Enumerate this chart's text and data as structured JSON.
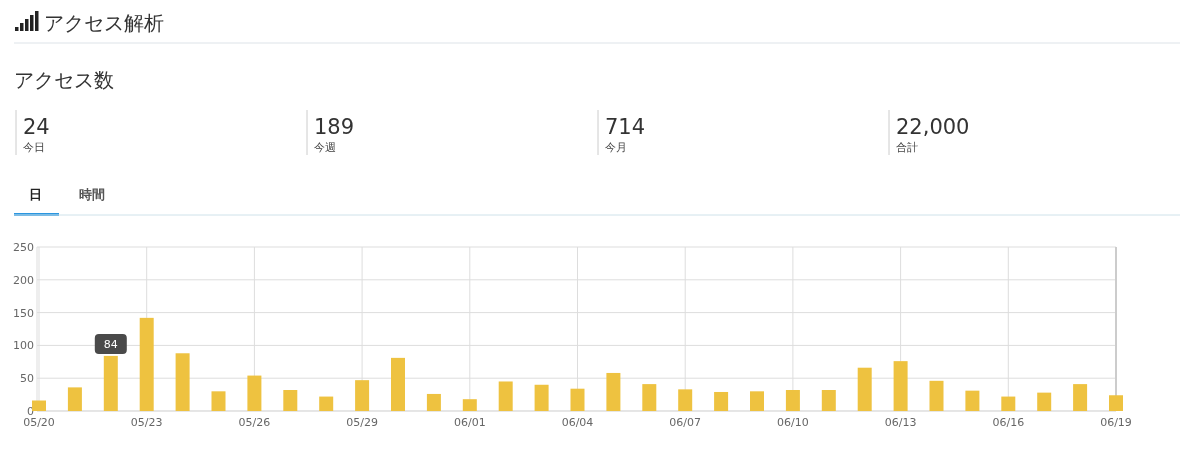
{
  "chart_data": [
    {
      "type": "other",
      "title": "アクセス解析",
      "subtitle": "アクセス数",
      "categories": [
        "今日",
        "今週",
        "今月",
        "合計"
      ],
      "value_labels": [
        "24",
        "189",
        "714",
        "22,000"
      ]
    },
    {
      "type": "bar",
      "annotations": [
        "日",
        "時間"
      ],
      "categories": [
        "05/20",
        null,
        null,
        "05/23",
        null,
        null,
        "05/26",
        null,
        null,
        "05/29",
        null,
        null,
        "06/01",
        null,
        null,
        "06/04",
        null,
        null,
        "06/07",
        null,
        null,
        "06/10",
        null,
        null,
        "06/13",
        null,
        null,
        "06/16",
        null,
        null,
        "06/19"
      ],
      "values": [
        16,
        36,
        84,
        142,
        88,
        30,
        54,
        32,
        22,
        47,
        81,
        26,
        18,
        45,
        40,
        34,
        58,
        41,
        33,
        29,
        30,
        32,
        32,
        66,
        76,
        46,
        31,
        22,
        28,
        41,
        24
      ],
      "value_labels": [
        null,
        null,
        "84",
        null,
        null,
        null,
        null,
        null,
        null,
        null,
        null,
        null,
        null,
        null,
        null,
        null,
        null,
        null,
        null,
        null,
        null,
        null,
        null,
        null,
        null,
        null,
        null,
        null,
        null,
        null,
        null
      ],
      "color": "#eec240",
      "ylim": [
        0,
        250
      ],
      "yticks": [
        0,
        50,
        100,
        150,
        200,
        250
      ],
      "grid": true
    }
  ]
}
